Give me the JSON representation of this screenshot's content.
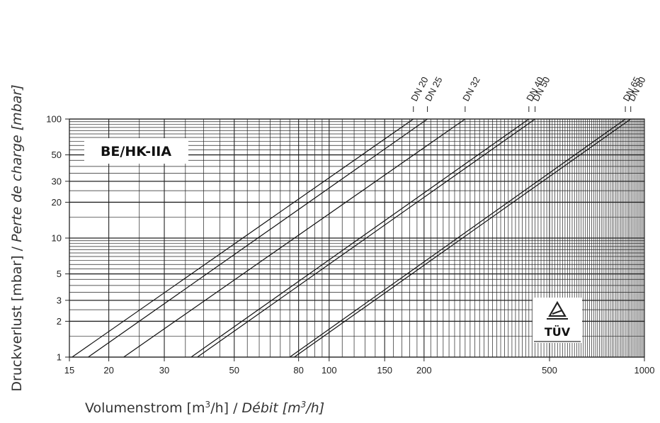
{
  "chart_data": {
    "type": "line",
    "title": "",
    "xlabel": "Volumenstrom [m³/h] / Débit [m³/h]",
    "xlabel_parts": [
      "Volumenstrom [m",
      "3",
      "/h] / ",
      "Débit [m",
      "3",
      "/h]"
    ],
    "ylabel": "Druckverlust [mbar] / Perte de charge [mbar]",
    "ylabel_parts": [
      "Druckverlust [mbar] / ",
      "Perte de charge [mbar]"
    ],
    "x_scale": "log",
    "y_scale": "log",
    "xlim": [
      15,
      1000
    ],
    "ylim": [
      1,
      100
    ],
    "x_ticks": [
      15,
      20,
      30,
      50,
      80,
      100,
      150,
      200,
      500,
      1000
    ],
    "x_tick_labels": [
      "15",
      "20",
      "30",
      "50",
      "80",
      "100",
      "150",
      "200",
      "500",
      "1000"
    ],
    "y_ticks": [
      1,
      2,
      3,
      5,
      10,
      20,
      30,
      50,
      100
    ],
    "y_tick_labels": [
      "1",
      "2",
      "3",
      "5",
      "10",
      "20",
      "30",
      "50",
      "100"
    ],
    "grid": true,
    "box_label": "BE/HK-IIA",
    "badge_text": "TÜV",
    "series": [
      {
        "name": "DN 20",
        "x": [
          15.3,
          185
        ],
        "y": [
          1,
          100
        ]
      },
      {
        "name": "DN 25",
        "x": [
          17.2,
          205
        ],
        "y": [
          1,
          100
        ]
      },
      {
        "name": "DN 32",
        "x": [
          22.3,
          270
        ],
        "y": [
          1,
          100
        ]
      },
      {
        "name": "DN 40",
        "x": [
          36.5,
          430
        ],
        "y": [
          1,
          100
        ]
      },
      {
        "name": "DN 50",
        "x": [
          38.2,
          450
        ],
        "y": [
          1,
          100
        ]
      },
      {
        "name": "DN 65",
        "x": [
          75,
          870
        ],
        "y": [
          1,
          100
        ]
      },
      {
        "name": "DN 80",
        "x": [
          77.5,
          905
        ],
        "y": [
          1,
          100
        ]
      }
    ]
  }
}
